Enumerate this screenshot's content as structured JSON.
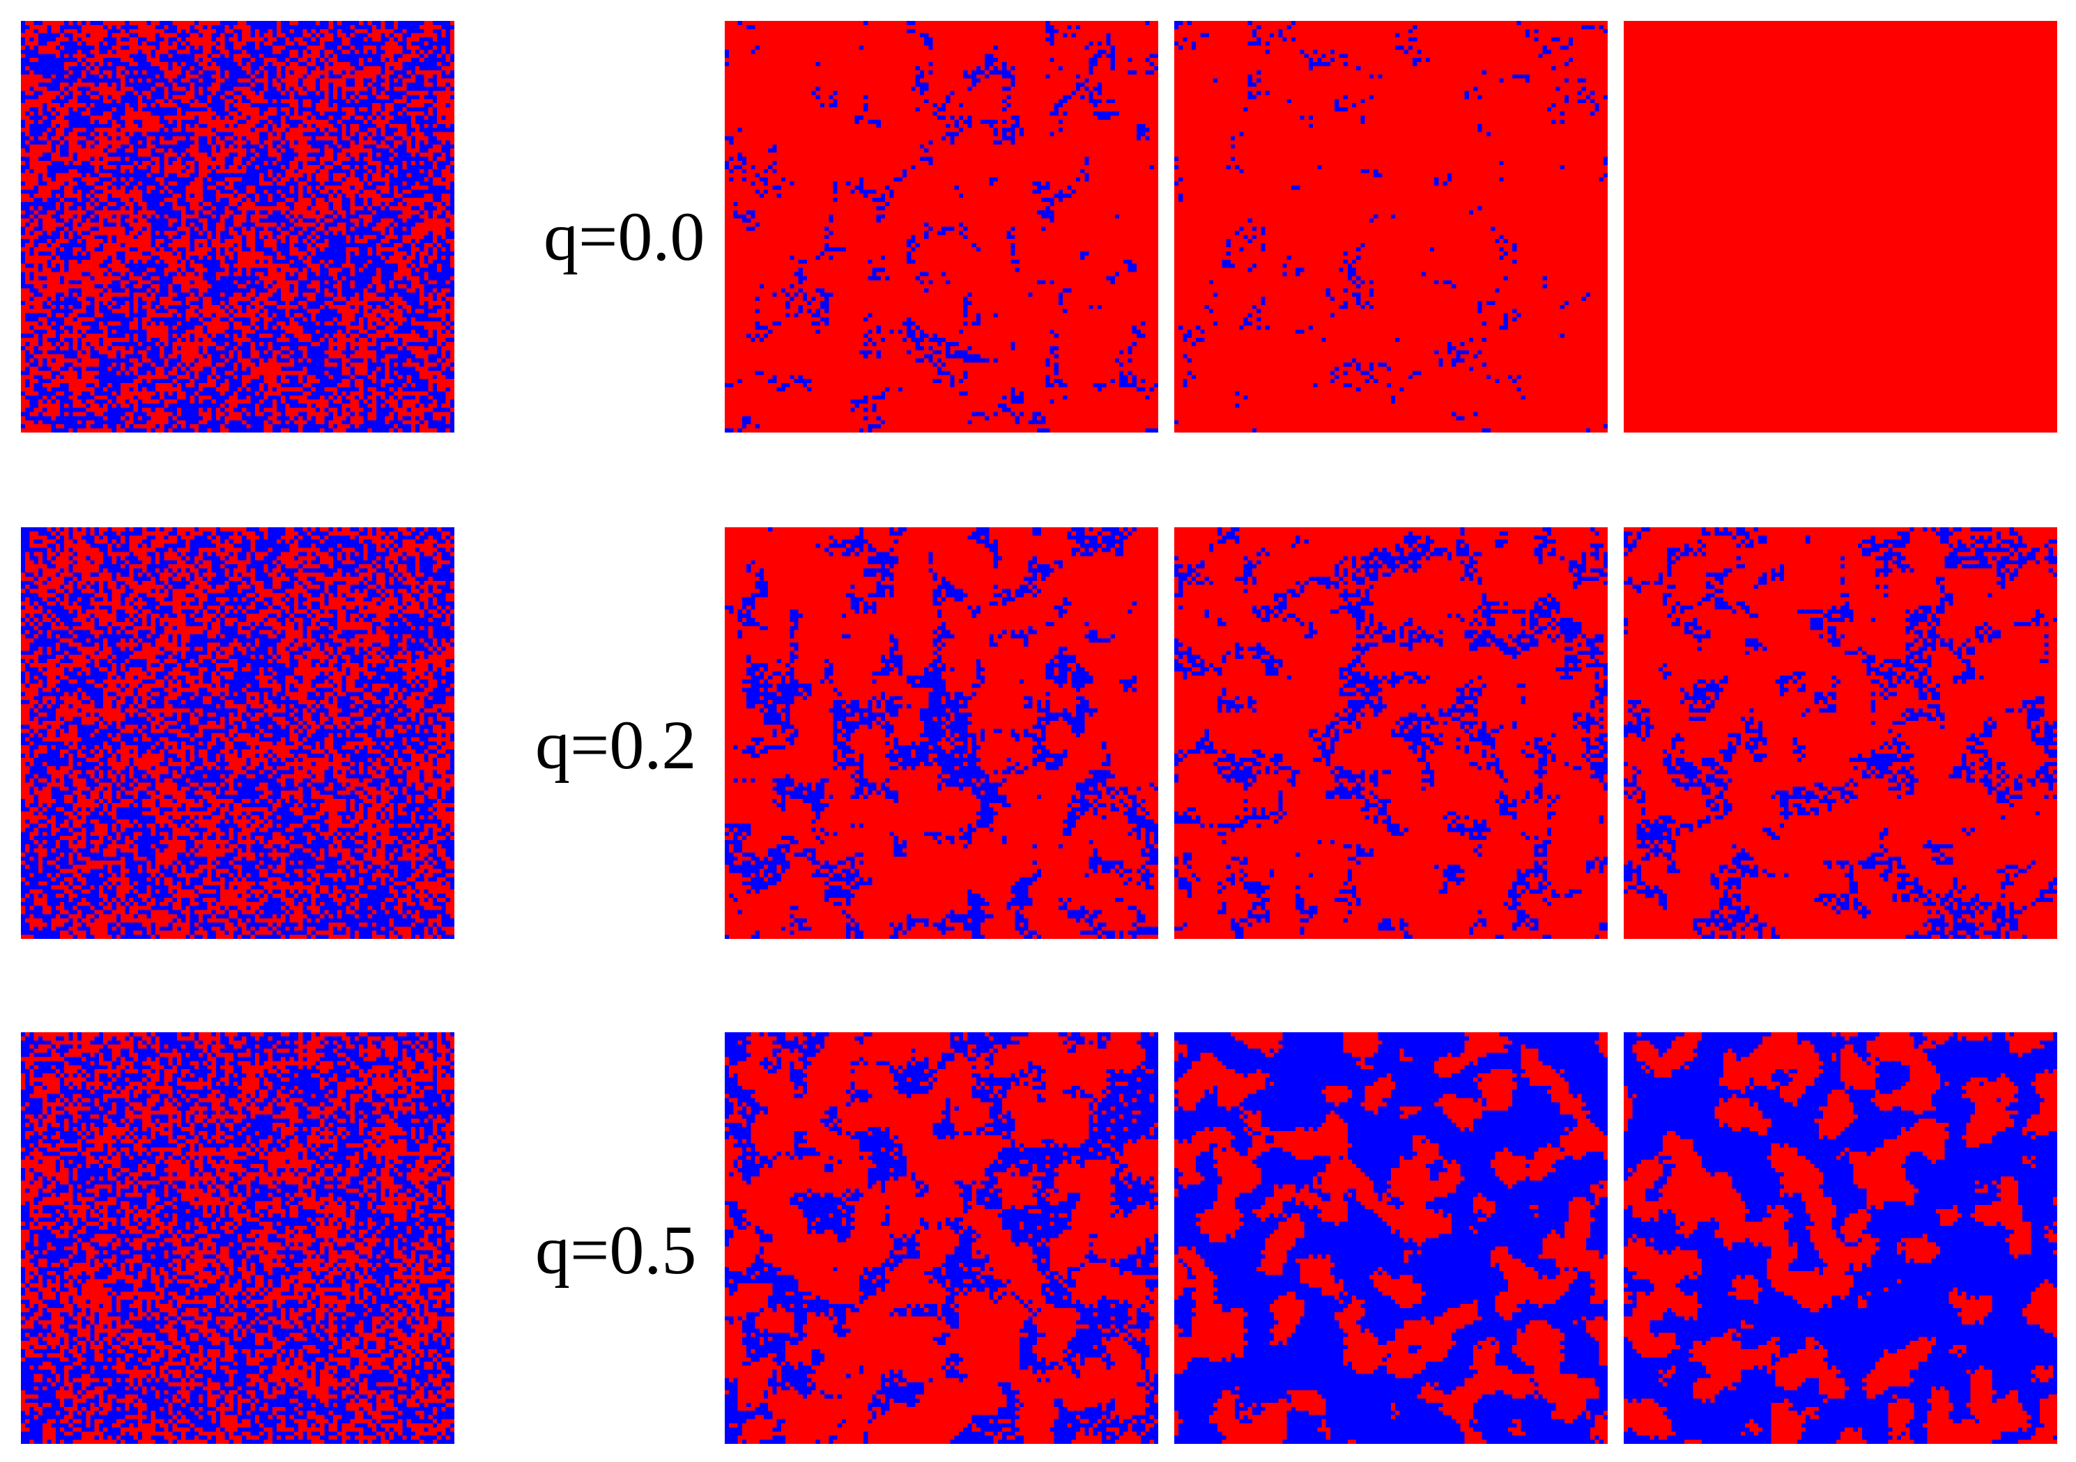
{
  "colors": {
    "state_a": "#FF0000",
    "state_b": "#0000FF",
    "background": "#FFFFFF"
  },
  "rows": [
    {
      "label": "q=0.0",
      "panels": [
        {
          "blue_fraction": 0.5,
          "cluster": 0.2
        },
        {
          "blue_fraction": 0.08,
          "cluster": 0.55
        },
        {
          "blue_fraction": 0.04,
          "cluster": 0.62
        },
        {
          "blue_fraction": 0.0,
          "cluster": 0.6
        }
      ]
    },
    {
      "label": "q=0.2",
      "panels": [
        {
          "blue_fraction": 0.5,
          "cluster": 0.2
        },
        {
          "blue_fraction": 0.2,
          "cluster": 0.55
        },
        {
          "blue_fraction": 0.17,
          "cluster": 0.66
        },
        {
          "blue_fraction": 0.18,
          "cluster": 0.7
        }
      ]
    },
    {
      "label": "q=0.5",
      "panels": [
        {
          "blue_fraction": 0.5,
          "cluster": 0.2
        },
        {
          "blue_fraction": 0.3,
          "cluster": 0.68
        },
        {
          "blue_fraction": 0.62,
          "cluster": 0.74
        },
        {
          "blue_fraction": 0.6,
          "cluster": 0.76
        }
      ]
    }
  ]
}
